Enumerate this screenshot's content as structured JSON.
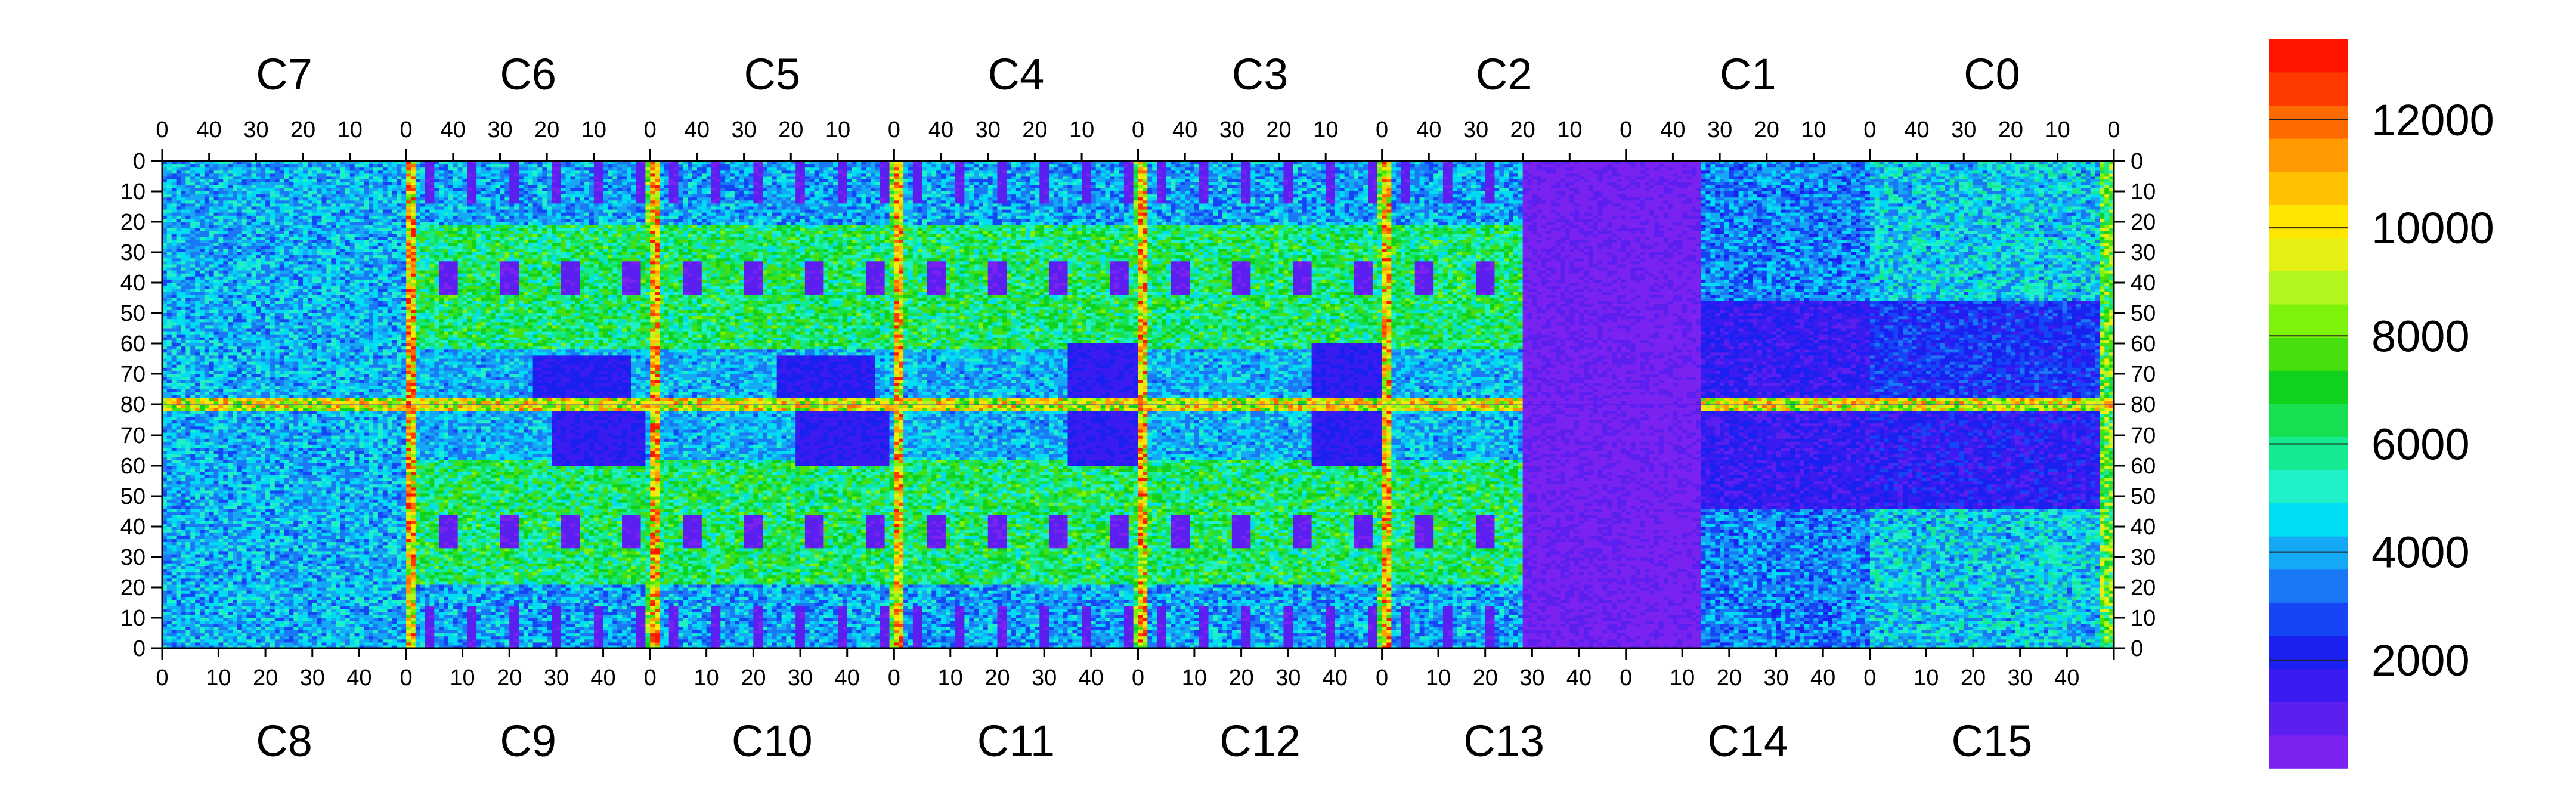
{
  "chart_data": {
    "type": "heatmap",
    "title": "",
    "top_chips": [
      "C7",
      "C6",
      "C5",
      "C4",
      "C3",
      "C2",
      "C1",
      "C0"
    ],
    "bottom_chips": [
      "C8",
      "C9",
      "C10",
      "C11",
      "C12",
      "C13",
      "C14",
      "C15"
    ],
    "top_x_ticks": [
      "0",
      "10",
      "20",
      "30",
      "40",
      "0"
    ],
    "bottom_x_ticks": [
      "0",
      "10",
      "20",
      "30",
      "40",
      "0"
    ],
    "y_ticks_top_half": [
      "0",
      "10",
      "20",
      "30",
      "40",
      "50",
      "60",
      "70",
      "80"
    ],
    "y_ticks_bottom_half": [
      "70",
      "60",
      "50",
      "40",
      "30",
      "20",
      "10",
      "0"
    ],
    "columns_per_chip": 52,
    "rows_per_half": 80,
    "colorbar": {
      "min": 0,
      "max": 13500,
      "tick_values": [
        2000,
        4000,
        6000,
        8000,
        10000,
        12000
      ],
      "tick_labels": [
        "2000",
        "4000",
        "6000",
        "8000",
        "10000",
        "12000"
      ],
      "colors": [
        "#7a22f0",
        "#5b1ff0",
        "#3b1cf0",
        "#1a20f0",
        "#1545f5",
        "#1a78f5",
        "#14a8f5",
        "#00ddf2",
        "#20f0c8",
        "#15ea90",
        "#16e04f",
        "#10d21c",
        "#47e00e",
        "#7df20a",
        "#b3f51f",
        "#e6f015",
        "#ffe600",
        "#ffc200",
        "#ff9a00",
        "#ff6a00",
        "#ff3a00",
        "#ff1500"
      ]
    },
    "low_regions": [
      "C13 right part",
      "C14 and C2 joined block",
      "chip pad rectangles"
    ],
    "hot_columns": [
      "chip edge columns",
      "boundary row at 80"
    ]
  }
}
